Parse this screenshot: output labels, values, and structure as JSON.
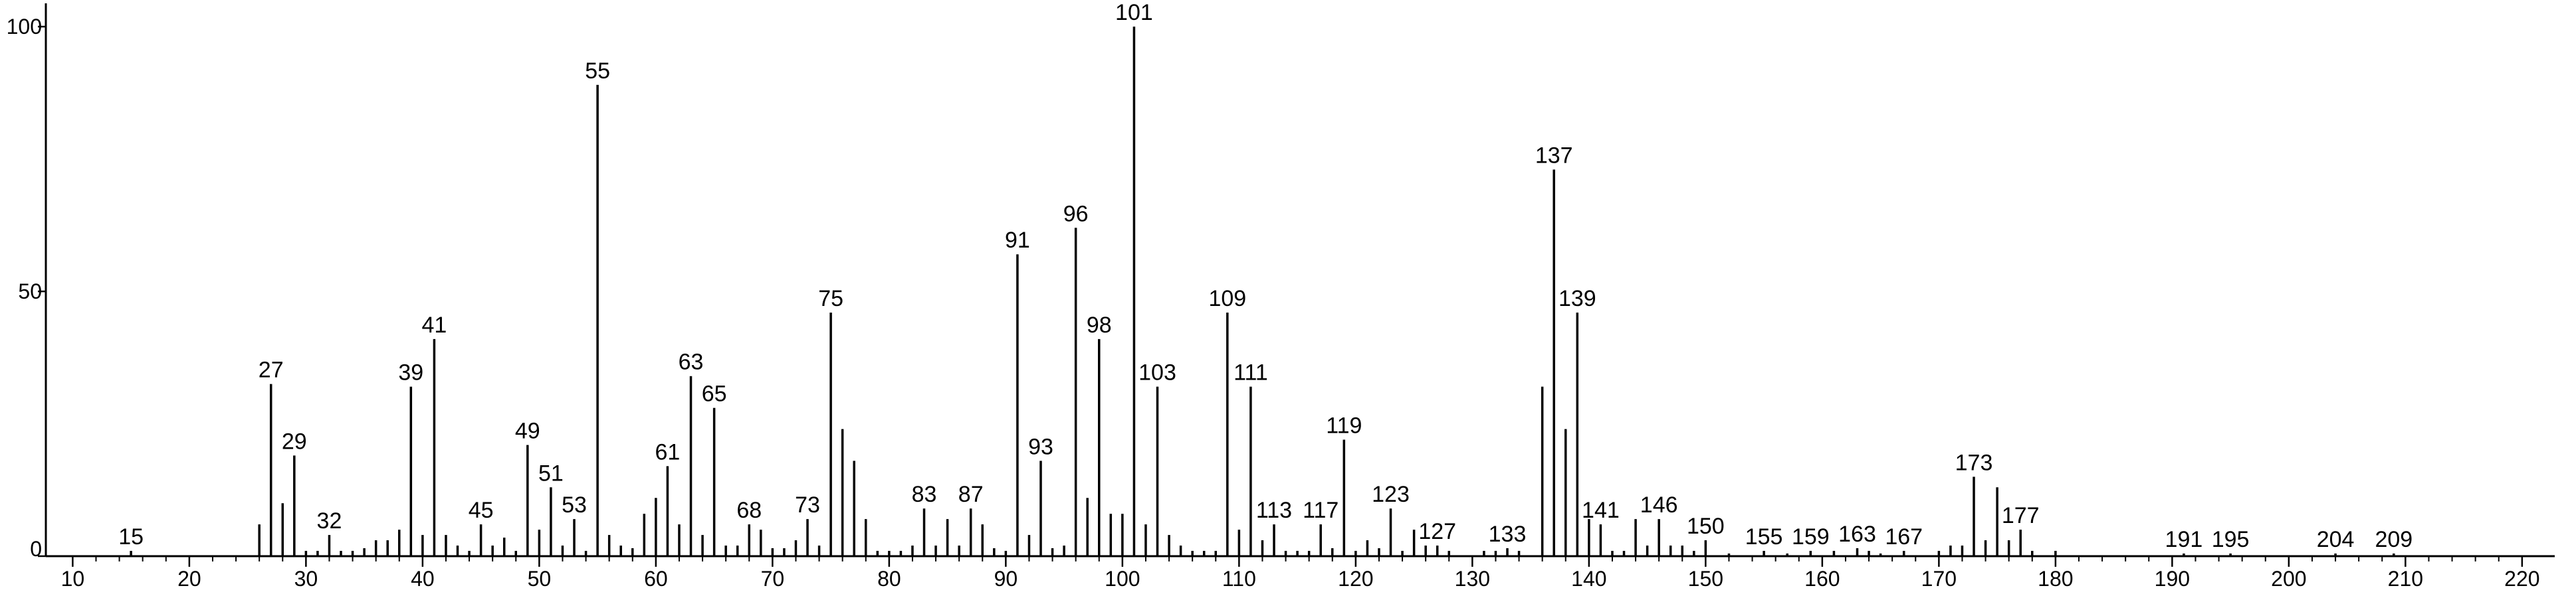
{
  "chart_data": {
    "type": "stem",
    "color": "#000000",
    "x": [
      15,
      26,
      27,
      28,
      29,
      30,
      31,
      32,
      33,
      34,
      35,
      36,
      37,
      38,
      39,
      40,
      41,
      42,
      43,
      44,
      45,
      46,
      47,
      48,
      49,
      50,
      51,
      52,
      53,
      54,
      55,
      56,
      57,
      58,
      59,
      60,
      61,
      62,
      63,
      64,
      65,
      66,
      67,
      68,
      69,
      70,
      71,
      72,
      73,
      74,
      75,
      76,
      77,
      78,
      79,
      80,
      81,
      82,
      83,
      84,
      85,
      86,
      87,
      88,
      89,
      90,
      91,
      92,
      93,
      94,
      95,
      96,
      97,
      98,
      99,
      100,
      101,
      102,
      103,
      104,
      105,
      106,
      107,
      108,
      109,
      110,
      111,
      112,
      113,
      114,
      115,
      116,
      117,
      118,
      119,
      120,
      121,
      122,
      123,
      124,
      125,
      126,
      127,
      128,
      131,
      132,
      133,
      134,
      136,
      137,
      138,
      139,
      140,
      141,
      142,
      143,
      144,
      145,
      146,
      147,
      148,
      149,
      150,
      152,
      155,
      157,
      159,
      161,
      163,
      164,
      165,
      167,
      170,
      171,
      172,
      173,
      174,
      175,
      176,
      177,
      178,
      180,
      191,
      195,
      204,
      209
    ],
    "values": [
      1,
      6,
      32.5,
      10,
      19,
      1,
      1,
      4,
      1,
      1,
      1.5,
      3,
      3,
      5,
      32,
      4,
      41,
      4,
      2,
      1,
      6,
      2,
      3.5,
      1,
      21,
      5,
      13,
      2,
      7,
      1,
      89,
      4,
      2,
      1.5,
      8,
      11,
      17,
      6,
      34,
      4,
      28,
      2,
      2,
      6,
      5,
      1.5,
      1.5,
      3,
      7,
      2,
      46,
      24,
      18,
      7,
      1,
      1,
      1,
      2,
      9,
      2,
      7,
      2,
      9,
      6,
      1.5,
      1,
      57,
      4,
      18,
      1.5,
      2,
      62,
      11,
      41,
      8,
      8,
      100,
      6,
      32,
      4,
      2,
      1,
      1,
      1,
      46,
      5,
      32,
      3,
      6,
      1,
      1,
      1,
      6,
      1.5,
      22,
      1,
      3,
      1.5,
      9,
      1,
      5,
      2,
      2,
      1,
      1,
      1,
      1.5,
      1,
      32,
      73,
      24,
      46,
      7,
      6,
      1,
      1,
      7,
      2,
      7,
      2,
      2,
      1,
      3,
      0.5,
      1,
      0.5,
      1,
      1,
      1.5,
      1,
      0.5,
      1,
      1,
      2,
      2,
      15,
      3,
      13,
      3,
      5,
      1,
      1,
      0.5,
      0.5,
      0.5,
      0.5
    ],
    "labeled": [
      true,
      false,
      true,
      false,
      true,
      false,
      false,
      true,
      false,
      false,
      false,
      false,
      false,
      false,
      true,
      false,
      true,
      false,
      false,
      false,
      true,
      false,
      false,
      false,
      true,
      false,
      true,
      false,
      true,
      false,
      true,
      false,
      false,
      false,
      false,
      false,
      true,
      false,
      true,
      false,
      true,
      false,
      false,
      true,
      false,
      false,
      false,
      false,
      true,
      false,
      true,
      false,
      false,
      false,
      false,
      false,
      false,
      false,
      true,
      false,
      false,
      false,
      true,
      false,
      false,
      false,
      true,
      false,
      true,
      false,
      false,
      true,
      false,
      true,
      false,
      false,
      true,
      false,
      true,
      false,
      false,
      false,
      false,
      false,
      true,
      false,
      true,
      false,
      true,
      false,
      false,
      false,
      true,
      false,
      true,
      false,
      false,
      false,
      true,
      false,
      false,
      false,
      true,
      false,
      false,
      false,
      true,
      false,
      false,
      true,
      false,
      true,
      false,
      true,
      false,
      false,
      false,
      false,
      true,
      false,
      false,
      false,
      true,
      false,
      true,
      false,
      true,
      false,
      true,
      false,
      false,
      true,
      false,
      false,
      false,
      true,
      false,
      false,
      false,
      true,
      false,
      false,
      true,
      true,
      true,
      true
    ],
    "xlim": [
      7.7,
      222.8
    ],
    "ylim": [
      0,
      104.4
    ],
    "xticks": [
      10,
      20,
      30,
      40,
      50,
      60,
      70,
      80,
      90,
      100,
      110,
      120,
      130,
      140,
      150,
      160,
      170,
      180,
      190,
      200,
      210,
      220
    ],
    "yticks": [
      0,
      50,
      100
    ]
  }
}
